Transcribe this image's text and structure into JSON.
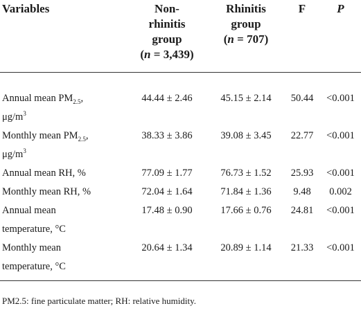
{
  "table": {
    "headers": {
      "variables": "Variables",
      "non_rhinitis": [
        "Non-",
        "rhinitis",
        "group"
      ],
      "non_rhinitis_n_prefix": "(",
      "non_rhinitis_n_var": "n",
      "non_rhinitis_n_value": " = 3,439)",
      "rhinitis": [
        "Rhinitis",
        "group"
      ],
      "rhinitis_n_prefix": "(",
      "rhinitis_n_var": "n",
      "rhinitis_n_value": " = 707)",
      "f": "F",
      "p": "P"
    },
    "rows": [
      {
        "var_line1_pre": "Annual mean PM",
        "var_line1_sub": "2.5",
        "var_line1_post": ",",
        "var_line2_pre": "μg/m",
        "var_line2_sup": "3",
        "non_rhinitis": "44.44 ± 2.46",
        "rhinitis": "45.15 ± 2.14",
        "f": "50.44",
        "p": "<0.001"
      },
      {
        "var_line1_pre": "Monthly mean PM",
        "var_line1_sub": "2.5",
        "var_line1_post": ",",
        "var_line2_pre": "μg/m",
        "var_line2_sup": "3",
        "non_rhinitis": "38.33 ± 3.86",
        "rhinitis": "39.08 ± 3.45",
        "f": "22.77",
        "p": "<0.001"
      },
      {
        "var_text": "Annual mean RH, %",
        "non_rhinitis": "77.09 ± 1.77",
        "rhinitis": "76.73 ± 1.52",
        "f": "25.93",
        "p": "<0.001"
      },
      {
        "var_text": "Monthly mean RH, %",
        "non_rhinitis": "72.04 ± 1.64",
        "rhinitis": "71.84 ± 1.36",
        "f": "9.48",
        "p": "0.002"
      },
      {
        "var_line1": "Annual mean",
        "var_line2": "temperature, °C",
        "non_rhinitis": "17.48 ± 0.90",
        "rhinitis": "17.66 ± 0.76",
        "f": "24.81",
        "p": "<0.001"
      },
      {
        "var_line1": "Monthly mean",
        "var_line2": "temperature, °C",
        "non_rhinitis": "20.64 ± 1.34",
        "rhinitis": "20.89 ± 1.14",
        "f": "21.33",
        "p": "<0.001"
      }
    ]
  },
  "footnote": "PM2.5: fine particulate matter; RH: relative humidity."
}
